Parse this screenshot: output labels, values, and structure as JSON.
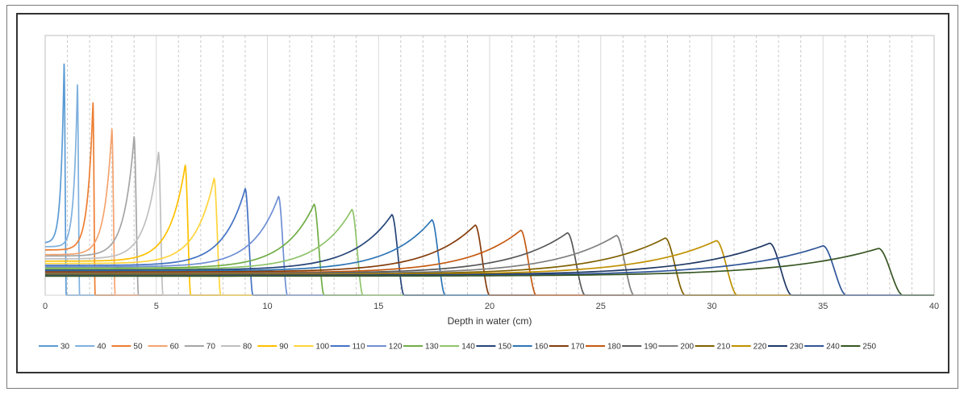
{
  "chart_data": {
    "type": "line",
    "title": "",
    "xlabel": "Depth in water (cm)",
    "ylabel": "",
    "xlim": [
      0,
      40
    ],
    "ylim": [
      0,
      1
    ],
    "x_ticks": [
      0,
      5,
      10,
      15,
      20,
      25,
      30,
      35,
      40
    ],
    "grid": "vertical major solid, minor dashed every 1 cm",
    "legend_position": "bottom",
    "series": [
      {
        "name": "30",
        "color": "#5b9bd5",
        "peak_depth": 0.85,
        "peak_value": 0.89,
        "cutoff_depth": 0.95
      },
      {
        "name": "40",
        "color": "#7fb0de",
        "peak_depth": 1.45,
        "peak_value": 0.81,
        "cutoff_depth": 1.55
      },
      {
        "name": "50",
        "color": "#ed7d31",
        "peak_depth": 2.15,
        "peak_value": 0.74,
        "cutoff_depth": 2.25
      },
      {
        "name": "60",
        "color": "#f4a470",
        "peak_depth": 3.0,
        "peak_value": 0.64,
        "cutoff_depth": 3.15
      },
      {
        "name": "70",
        "color": "#a5a5a5",
        "peak_depth": 4.0,
        "peak_value": 0.61,
        "cutoff_depth": 4.2
      },
      {
        "name": "80",
        "color": "#bfbfbf",
        "peak_depth": 5.1,
        "peak_value": 0.55,
        "cutoff_depth": 5.3
      },
      {
        "name": "90",
        "color": "#ffc000",
        "peak_depth": 6.3,
        "peak_value": 0.5,
        "cutoff_depth": 6.55
      },
      {
        "name": "100",
        "color": "#ffd43b",
        "peak_depth": 7.6,
        "peak_value": 0.45,
        "cutoff_depth": 7.9
      },
      {
        "name": "110",
        "color": "#4472c4",
        "peak_depth": 9.0,
        "peak_value": 0.41,
        "cutoff_depth": 9.35
      },
      {
        "name": "120",
        "color": "#6f8fd4",
        "peak_depth": 10.5,
        "peak_value": 0.38,
        "cutoff_depth": 10.9
      },
      {
        "name": "130",
        "color": "#70ad47",
        "peak_depth": 12.1,
        "peak_value": 0.35,
        "cutoff_depth": 12.55
      },
      {
        "name": "140",
        "color": "#8fc46a",
        "peak_depth": 13.8,
        "peak_value": 0.33,
        "cutoff_depth": 14.3
      },
      {
        "name": "150",
        "color": "#264478",
        "peak_depth": 15.6,
        "peak_value": 0.31,
        "cutoff_depth": 16.15
      },
      {
        "name": "160",
        "color": "#2e75b6",
        "peak_depth": 17.4,
        "peak_value": 0.29,
        "cutoff_depth": 18.0
      },
      {
        "name": "170",
        "color": "#843c0c",
        "peak_depth": 19.35,
        "peak_value": 0.27,
        "cutoff_depth": 20.0
      },
      {
        "name": "180",
        "color": "#c55a11",
        "peak_depth": 21.4,
        "peak_value": 0.25,
        "cutoff_depth": 22.1
      },
      {
        "name": "190",
        "color": "#595959",
        "peak_depth": 23.5,
        "peak_value": 0.24,
        "cutoff_depth": 24.3
      },
      {
        "name": "200",
        "color": "#7f7f7f",
        "peak_depth": 25.7,
        "peak_value": 0.23,
        "cutoff_depth": 26.5
      },
      {
        "name": "210",
        "color": "#7f6000",
        "peak_depth": 27.9,
        "peak_value": 0.22,
        "cutoff_depth": 28.8
      },
      {
        "name": "220",
        "color": "#bf9000",
        "peak_depth": 30.2,
        "peak_value": 0.21,
        "cutoff_depth": 31.15
      },
      {
        "name": "230",
        "color": "#1f3864",
        "peak_depth": 32.6,
        "peak_value": 0.2,
        "cutoff_depth": 33.6
      },
      {
        "name": "240",
        "color": "#2f5597",
        "peak_depth": 35.0,
        "peak_value": 0.19,
        "cutoff_depth": 36.05
      },
      {
        "name": "250",
        "color": "#375623",
        "peak_depth": 37.5,
        "peak_value": 0.18,
        "cutoff_depth": 38.6
      }
    ]
  }
}
